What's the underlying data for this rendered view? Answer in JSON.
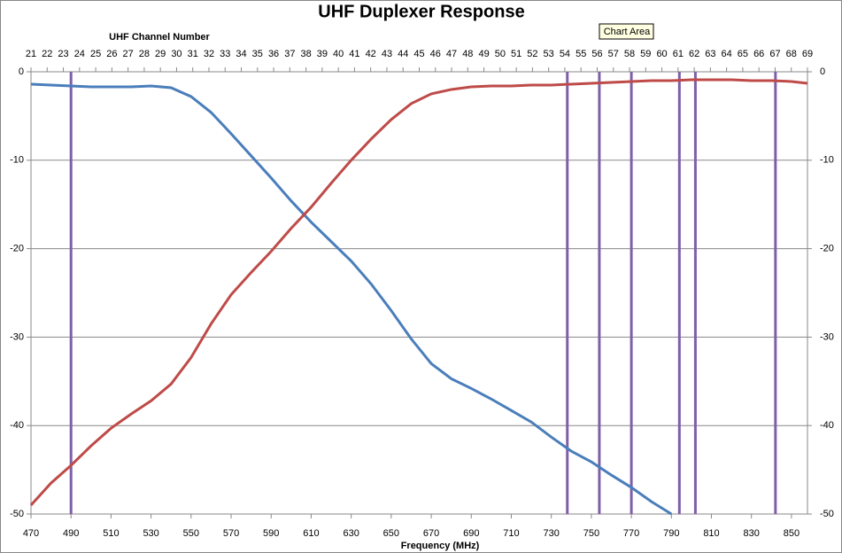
{
  "chart_data": {
    "type": "line",
    "title": "UHF Duplexer Response",
    "x_label": "Frequency (MHz)",
    "x2_label": "UHF Channel Number",
    "tooltip": "Chart Area",
    "x": [
      470,
      480,
      490,
      500,
      510,
      520,
      530,
      540,
      550,
      560,
      570,
      580,
      590,
      600,
      610,
      620,
      630,
      640,
      650,
      660,
      670,
      680,
      690,
      700,
      710,
      720,
      730,
      740,
      750,
      760,
      770,
      780,
      790,
      800,
      810,
      820,
      830,
      840,
      850,
      858
    ],
    "series": [
      {
        "color": "#4a7ebb",
        "values": [
          -1.4,
          -1.5,
          -1.6,
          -1.7,
          -1.7,
          -1.7,
          -1.6,
          -1.8,
          -2.8,
          -4.6,
          -7.0,
          -9.5,
          -12.0,
          -14.6,
          -17.0,
          -19.2,
          -21.4,
          -24.0,
          -27.0,
          -30.2,
          -33.0,
          -34.7,
          -35.8,
          -37.0,
          -38.3,
          -39.6,
          -41.3,
          -42.9,
          -44.1,
          -45.6,
          -47.0,
          -48.6,
          -50.0,
          null,
          null,
          null,
          null,
          null,
          null,
          null
        ]
      },
      {
        "color": "#be4b48",
        "values": [
          -49.0,
          -46.5,
          -44.5,
          -42.3,
          -40.3,
          -38.7,
          -37.2,
          -35.3,
          -32.3,
          -28.5,
          -25.2,
          -22.7,
          -20.3,
          -17.7,
          -15.3,
          -12.6,
          -10.0,
          -7.6,
          -5.4,
          -3.6,
          -2.5,
          -2.0,
          -1.7,
          -1.6,
          -1.6,
          -1.5,
          -1.5,
          -1.4,
          -1.3,
          -1.2,
          -1.1,
          -1.0,
          -1.0,
          -0.9,
          -0.9,
          -0.9,
          -1.0,
          -1.0,
          -1.1,
          -1.3
        ]
      }
    ],
    "vlines": {
      "color": "#7f5fa8",
      "x": [
        490,
        738,
        754,
        770,
        794,
        802,
        842
      ]
    },
    "xlim": [
      470,
      858
    ],
    "xticks": [
      470,
      490,
      510,
      530,
      550,
      570,
      590,
      610,
      630,
      650,
      670,
      690,
      710,
      730,
      750,
      770,
      790,
      810,
      830,
      850
    ],
    "x2lim": [
      21,
      69
    ],
    "x2ticks": [
      21,
      22,
      23,
      24,
      25,
      26,
      27,
      28,
      29,
      30,
      31,
      32,
      33,
      34,
      35,
      36,
      37,
      38,
      39,
      40,
      41,
      42,
      43,
      44,
      45,
      46,
      47,
      48,
      49,
      50,
      51,
      52,
      53,
      54,
      55,
      56,
      57,
      58,
      59,
      60,
      61,
      62,
      63,
      64,
      65,
      66,
      67,
      68,
      69
    ],
    "ylim": [
      -50,
      0
    ],
    "yticks": [
      -50,
      -40,
      -30,
      -20,
      -10,
      0
    ],
    "y2lim": [
      -50,
      0
    ],
    "y2ticks": [
      -50,
      -40,
      -30,
      -20,
      -10,
      0
    ],
    "grid": true
  }
}
